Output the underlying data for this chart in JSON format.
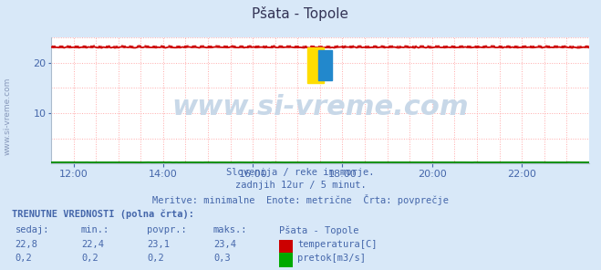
{
  "title": "Pšata - Topole",
  "bg_color": "#d8e8f8",
  "plot_bg_color": "#ffffff",
  "grid_color": "#ffaaaa",
  "x_ticks_minor": [
    0,
    6,
    12,
    18,
    24,
    30,
    36,
    42,
    48,
    54,
    60,
    66,
    72,
    78,
    84,
    90,
    96,
    102,
    108,
    114,
    120,
    126,
    132,
    138,
    144
  ],
  "x_tick_labels": [
    "12:00",
    "14:00",
    "16:00",
    "18:00",
    "20:00",
    "22:00"
  ],
  "x_tick_positions": [
    6,
    30,
    54,
    78,
    102,
    126
  ],
  "y_min": 0,
  "y_max": 25,
  "y_ticks": [
    10,
    20
  ],
  "y_grid_positions": [
    5,
    10,
    15,
    20,
    25
  ],
  "temp_mean": 23.1,
  "temp_min": 22.4,
  "temp_max": 23.4,
  "temp_color": "#cc0000",
  "flow_value": 0.2,
  "flow_color": "#008800",
  "subtitle1": "Slovenija / reke in morje.",
  "subtitle2": "zadnjih 12ur / 5 minut.",
  "subtitle3": "Meritve: minimalne  Enote: metrične  Črta: povprečje",
  "label_color": "#4466aa",
  "title_color": "#333355",
  "watermark": "www.si-vreme.com",
  "watermark_color": "#c8d8e8",
  "watermark_fontsize": 22,
  "left_watermark": "www.si-vreme.com",
  "left_watermark_color": "#8899bb",
  "currently_label": "TRENUTNE VREDNOSTI (polna črta):",
  "col_headers": [
    "sedaj:",
    "min.:",
    "povpr.:",
    "maks.:",
    "Pšata - Topole"
  ],
  "row1": [
    "22,8",
    "22,4",
    "23,1",
    "23,4",
    "temperatura[C]"
  ],
  "row2": [
    "0,2",
    "0,2",
    "0,2",
    "0,3",
    "pretok[m3/s]"
  ],
  "temp_legend_color": "#cc0000",
  "flow_legend_color": "#00aa00",
  "arrow_color": "#cc0000"
}
